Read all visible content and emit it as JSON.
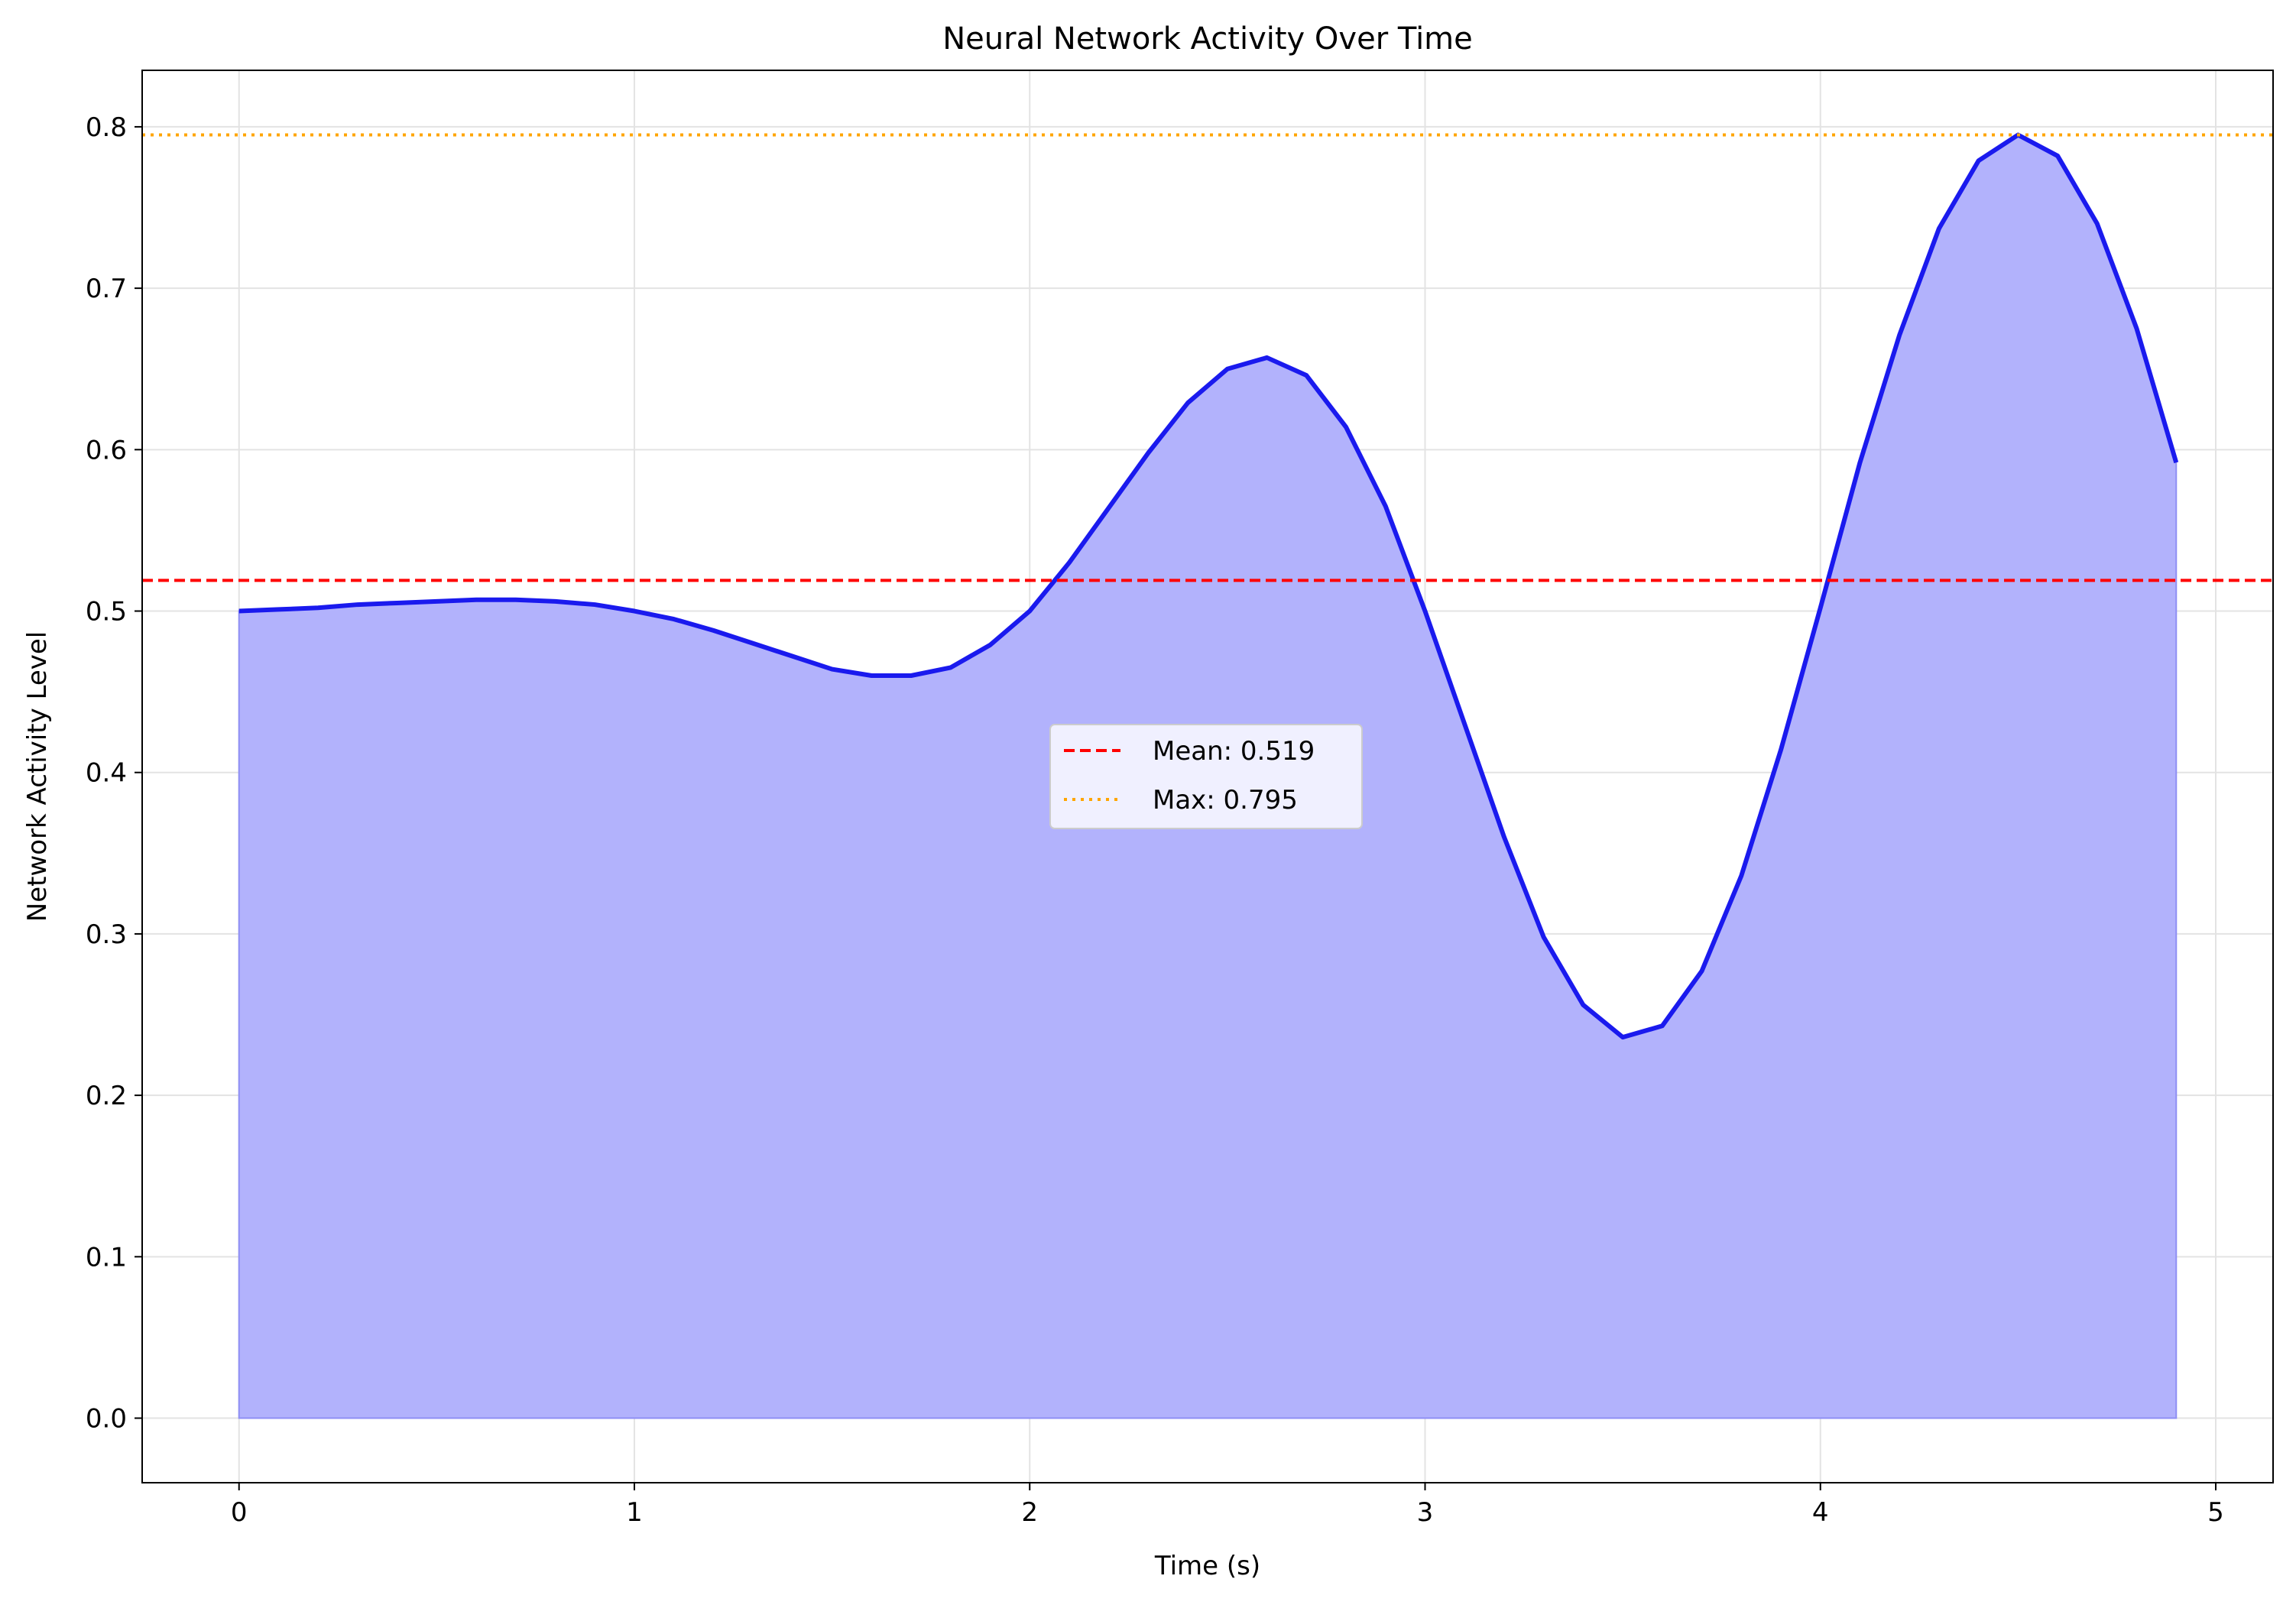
{
  "chart_data": {
    "type": "area",
    "title": "Neural Network Activity Over Time",
    "xlabel": "Time (s)",
    "ylabel": "Network Activity Level",
    "xlim": [
      -0.245,
      5.145
    ],
    "ylim": [
      -0.04,
      0.835
    ],
    "xticks": [
      0,
      1,
      2,
      3,
      4,
      5
    ],
    "xtick_labels": [
      "0",
      "1",
      "2",
      "3",
      "4",
      "5"
    ],
    "yticks": [
      0.0,
      0.1,
      0.2,
      0.3,
      0.4,
      0.5,
      0.6,
      0.7,
      0.8
    ],
    "ytick_labels": [
      "0.0",
      "0.1",
      "0.2",
      "0.3",
      "0.4",
      "0.5",
      "0.6",
      "0.7",
      "0.8"
    ],
    "grid": true,
    "legend_placement": "center",
    "series": [
      {
        "x": [
          0.0,
          0.1,
          0.2,
          0.3,
          0.4,
          0.5,
          0.6,
          0.7,
          0.8,
          0.9,
          1.0,
          1.1,
          1.2,
          1.3,
          1.4,
          1.5,
          1.6,
          1.7,
          1.8,
          1.9,
          2.0,
          2.1,
          2.2,
          2.3,
          2.4,
          2.5,
          2.6,
          2.7,
          2.8,
          2.9,
          3.0,
          3.1,
          3.2,
          3.3,
          3.4,
          3.5,
          3.6,
          3.7,
          3.8,
          3.9,
          4.0,
          4.1,
          4.2,
          4.3,
          4.4,
          4.5,
          4.6,
          4.7,
          4.8,
          4.9
        ],
        "values": [
          0.5,
          0.501,
          0.502,
          0.504,
          0.505,
          0.506,
          0.507,
          0.507,
          0.506,
          0.504,
          0.5,
          0.495,
          0.488,
          0.48,
          0.472,
          0.464,
          0.46,
          0.46,
          0.465,
          0.479,
          0.5,
          0.53,
          0.564,
          0.598,
          0.629,
          0.65,
          0.657,
          0.646,
          0.614,
          0.565,
          0.5,
          0.43,
          0.36,
          0.298,
          0.256,
          0.236,
          0.243,
          0.277,
          0.336,
          0.414,
          0.502,
          0.592,
          0.671,
          0.737,
          0.779,
          0.795,
          0.782,
          0.74,
          0.675,
          0.592
        ],
        "line_color": "#1a1aee",
        "fill_color": "#b2b2fc"
      }
    ],
    "reference_lines": [
      {
        "label": "Mean: 0.519",
        "value": 0.519,
        "color": "#ff0000",
        "style": "dashed"
      },
      {
        "label": "Max: 0.795",
        "value": 0.795,
        "color": "#ffa500",
        "style": "dotted"
      }
    ]
  }
}
